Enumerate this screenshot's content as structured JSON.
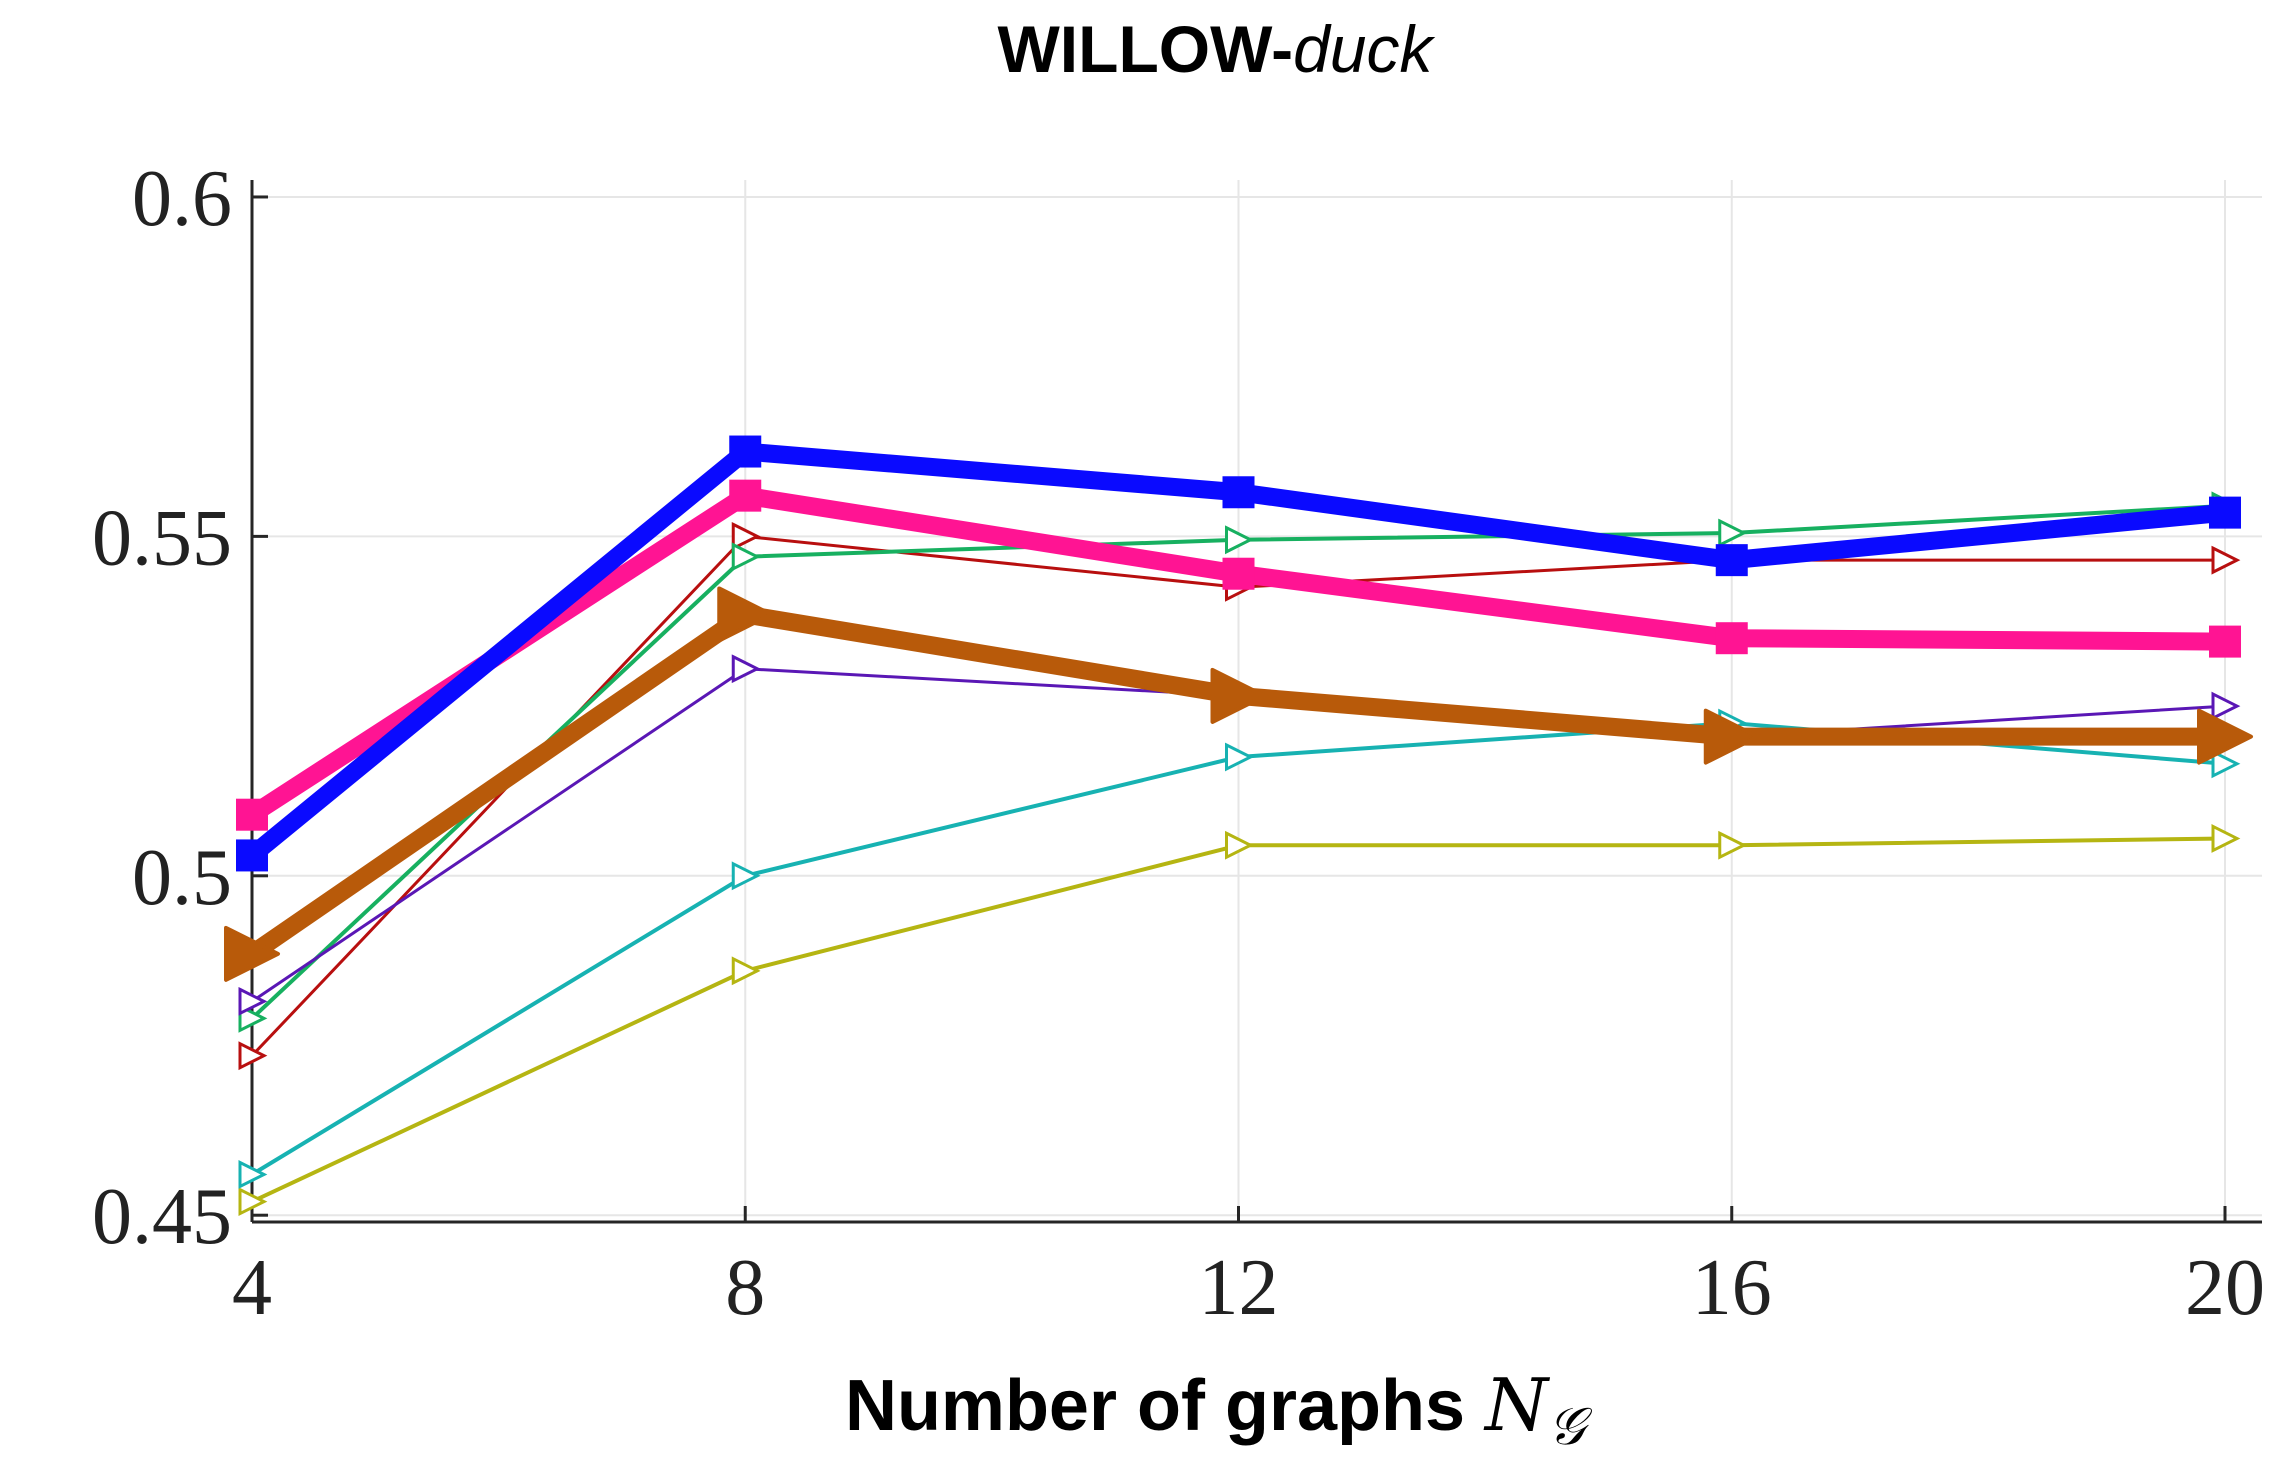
{
  "chart_data": {
    "type": "line",
    "title": "WILLOW-",
    "title_italic": "duck",
    "xlabel": "Number of graphs ",
    "xlabel_symbol": "N",
    "xlabel_subscript": "𝒢",
    "ylabel": "",
    "x": [
      4,
      8,
      12,
      16,
      20
    ],
    "x_tick_labels": [
      "4",
      "8",
      "12",
      "16",
      "20"
    ],
    "y_ticks": [
      0.45,
      0.5,
      0.55,
      0.6
    ],
    "y_tick_labels": [
      "0.45",
      "0.5",
      "0.55",
      "0.6"
    ],
    "xlim": [
      4,
      20.3
    ],
    "ylim": [
      0.449,
      0.6025
    ],
    "grid": true,
    "series": [
      {
        "name": "yellow-triangle",
        "color": "#b5b512",
        "marker": "triangle-open",
        "width": 4,
        "values": [
          0.452,
          0.486,
          0.5045,
          0.5045,
          0.5055
        ]
      },
      {
        "name": "cyan-triangle",
        "color": "#17b2b2",
        "marker": "triangle-open",
        "width": 4,
        "values": [
          0.456,
          0.5,
          0.5175,
          0.5225,
          0.5165
        ]
      },
      {
        "name": "red-triangle",
        "color": "#b80f0f",
        "marker": "triangle-open",
        "width": 3,
        "values": [
          0.4735,
          0.55,
          0.5425,
          0.5465,
          0.5465
        ]
      },
      {
        "name": "green-triangle",
        "color": "#17b060",
        "marker": "triangle-open",
        "width": 4,
        "values": [
          0.479,
          0.547,
          0.5495,
          0.5505,
          0.5545
        ]
      },
      {
        "name": "purple-triangle",
        "color": "#5a17b5",
        "marker": "triangle-open",
        "width": 3,
        "values": [
          0.4815,
          0.5305,
          0.5265,
          0.5205,
          0.525
        ]
      },
      {
        "name": "brown-triangle",
        "color": "#b85a0a",
        "marker": "triangle-filled",
        "width": 18,
        "values": [
          0.4885,
          0.5385,
          0.5265,
          0.5205,
          0.5205
        ]
      },
      {
        "name": "pink-square",
        "color": "#ff1493",
        "marker": "square-filled",
        "width": 18,
        "values": [
          0.509,
          0.556,
          0.5445,
          0.535,
          0.5345
        ]
      },
      {
        "name": "blue-square",
        "color": "#0a0aff",
        "marker": "square-filled",
        "width": 18,
        "values": [
          0.503,
          0.5625,
          0.5565,
          0.5465,
          0.5535
        ]
      }
    ]
  }
}
